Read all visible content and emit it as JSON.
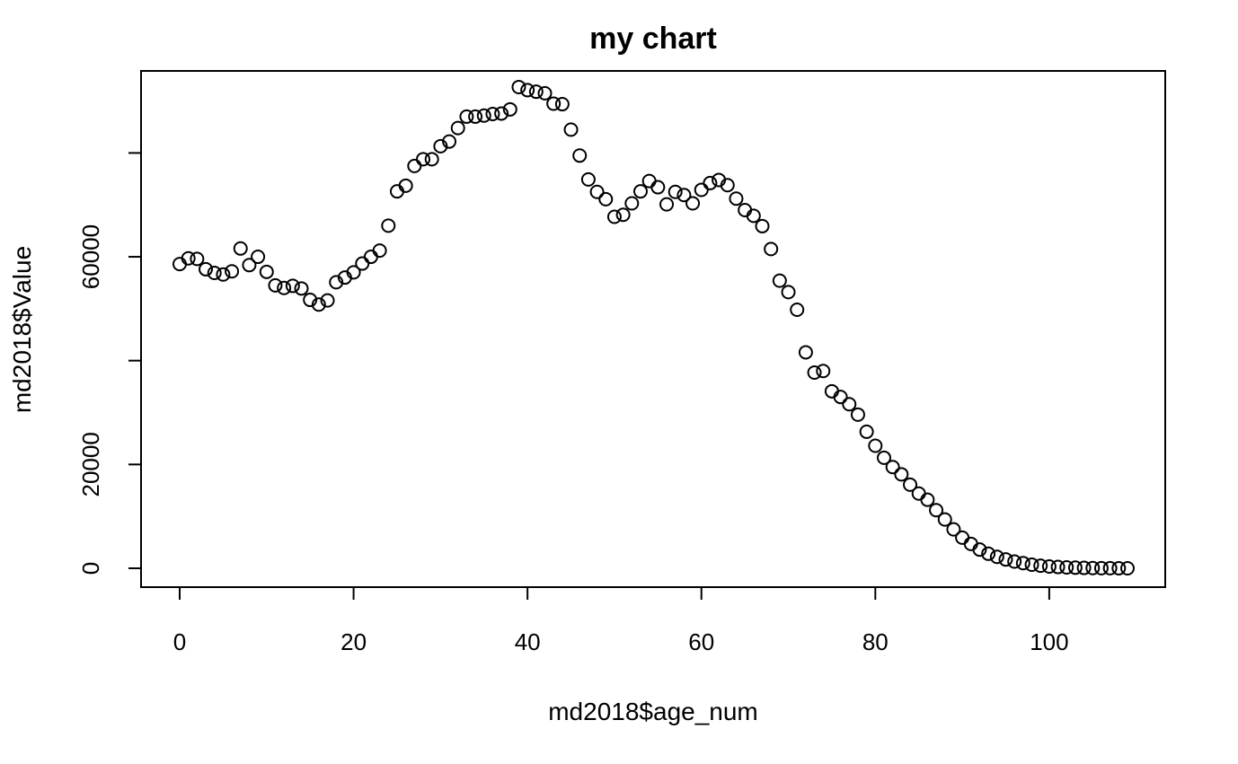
{
  "chart_data": {
    "type": "scatter",
    "title": "my chart",
    "xlabel": "md2018$age_num",
    "ylabel": "md2018$Value",
    "xlim": [
      0,
      109
    ],
    "ylim": [
      0,
      92000
    ],
    "x_ticks": [
      0,
      20,
      40,
      60,
      80,
      100
    ],
    "y_ticks": [
      0,
      20000,
      40000,
      60000,
      80000
    ],
    "y_tick_labels": [
      "0",
      "20000",
      "",
      "60000",
      ""
    ],
    "grid": false,
    "legend": "none",
    "point_style": "open-circle",
    "series": [
      {
        "x": [
          0,
          1,
          2,
          3,
          4,
          5,
          6,
          7,
          8,
          9,
          10,
          11,
          12,
          13,
          14,
          15,
          16,
          17,
          18,
          19,
          20,
          21,
          22,
          23,
          24,
          25,
          26,
          27,
          28,
          29,
          30,
          31,
          32,
          33,
          34,
          35,
          36,
          37,
          38,
          39,
          40,
          41,
          42,
          43,
          44,
          45,
          46,
          47,
          48,
          49,
          50,
          51,
          52,
          53,
          54,
          55,
          56,
          57,
          58,
          59,
          60,
          61,
          62,
          63,
          64,
          65,
          66,
          67,
          68,
          69,
          70,
          71,
          72,
          73,
          74,
          75,
          76,
          77,
          78,
          79,
          80,
          81,
          82,
          83,
          84,
          85,
          86,
          87,
          88,
          89,
          90,
          91,
          92,
          93,
          94,
          95,
          96,
          97,
          98,
          99,
          100,
          101,
          102,
          103,
          104,
          105,
          106,
          107,
          108,
          109
        ],
        "y": [
          58600,
          59700,
          59600,
          57600,
          56900,
          56600,
          57200,
          61600,
          58400,
          60000,
          57100,
          54500,
          54000,
          54400,
          53900,
          51700,
          50800,
          51600,
          55100,
          56000,
          57000,
          58700,
          60000,
          61200,
          66000,
          72600,
          73700,
          77500,
          78800,
          78800,
          81300,
          82200,
          84800,
          87000,
          87000,
          87200,
          87500,
          87600,
          88400,
          92700,
          92100,
          91800,
          91500,
          89500,
          89400,
          84500,
          79500,
          74900,
          72500,
          71100,
          67700,
          68100,
          70300,
          72600,
          74600,
          73400,
          70100,
          72500,
          71900,
          70300,
          72900,
          74200,
          74800,
          73800,
          71200,
          69000,
          67900,
          65900,
          61500,
          55400,
          53200,
          49800,
          41600,
          37700,
          38000,
          34100,
          33000,
          31600,
          29600,
          26300,
          23600,
          21300,
          19500,
          18100,
          16100,
          14400,
          13200,
          11200,
          9400,
          7500,
          5900,
          4700,
          3600,
          2800,
          2200,
          1700,
          1300,
          1000,
          700,
          500,
          350,
          250,
          180,
          120,
          80,
          50,
          30,
          20,
          10,
          5
        ]
      }
    ]
  }
}
